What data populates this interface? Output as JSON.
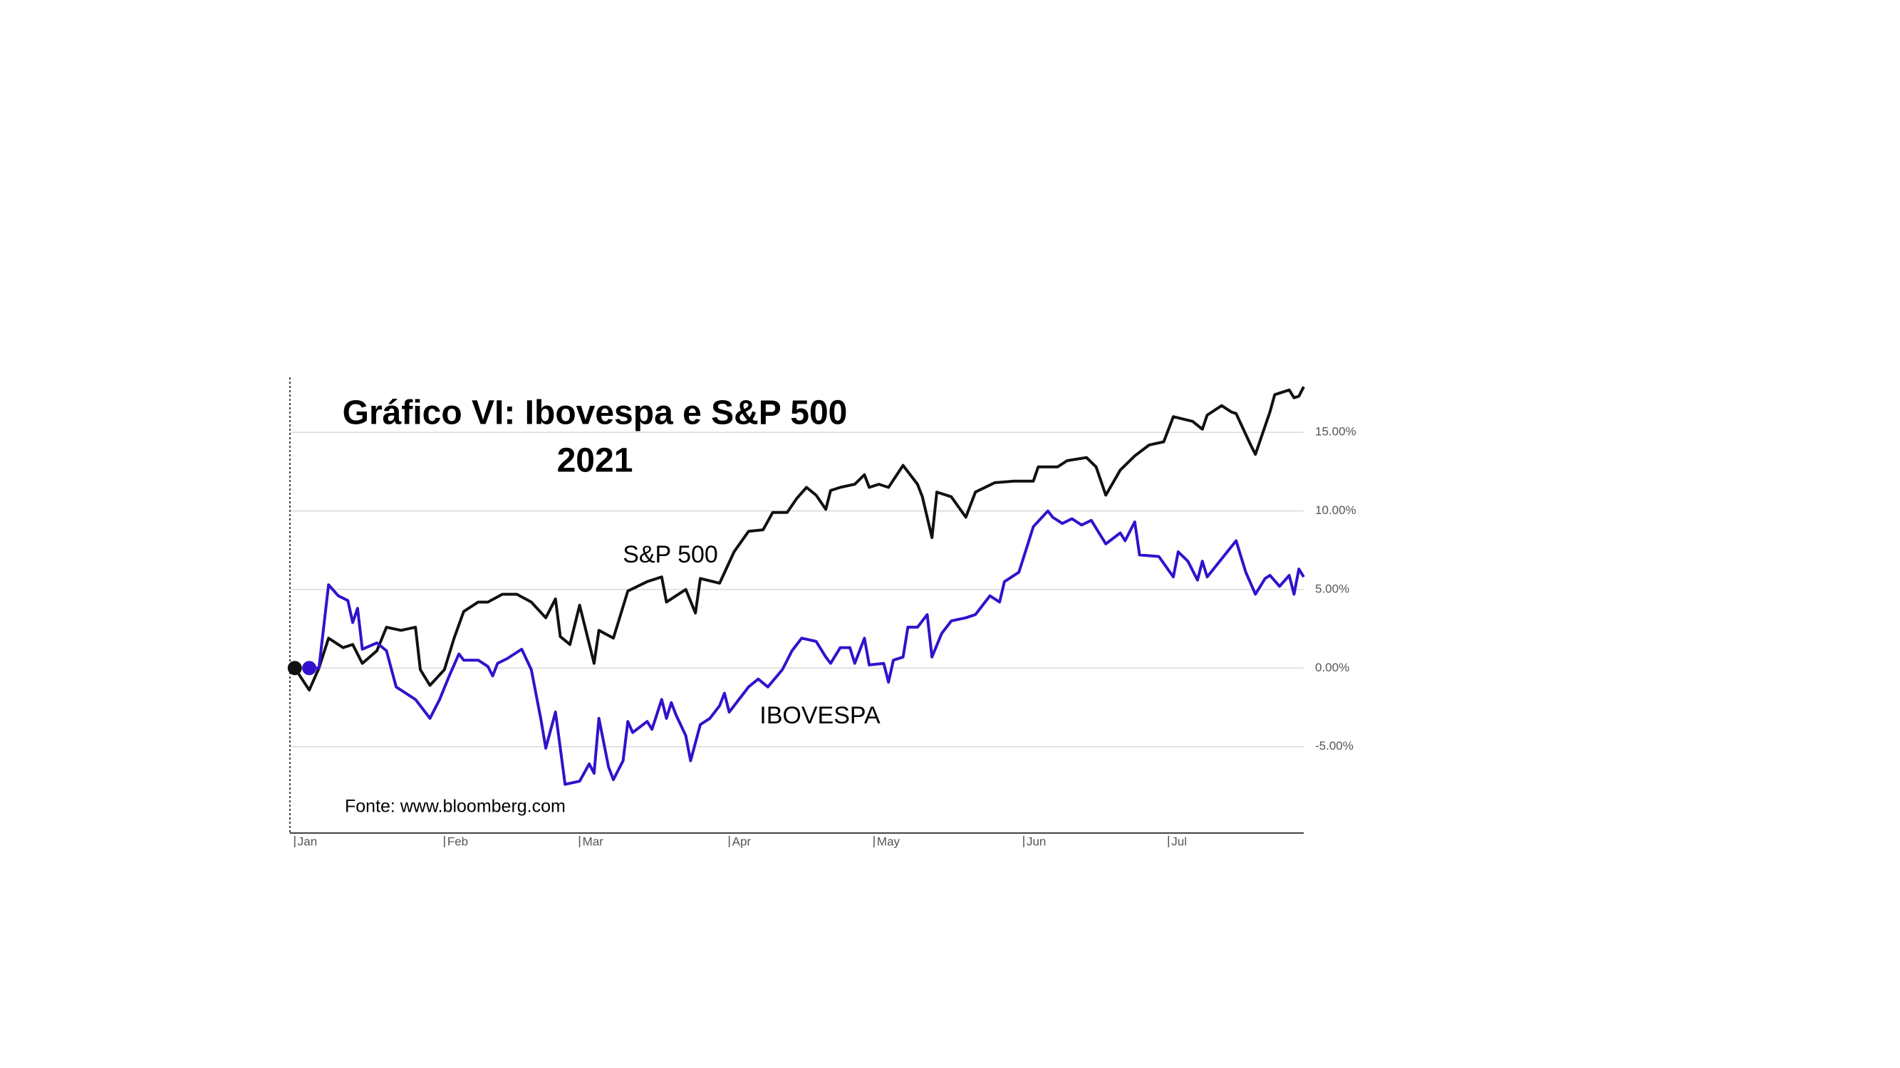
{
  "chart_data": {
    "type": "line",
    "title": "Gráfico VI: Ibovespa e S&P 500",
    "subtitle": "2021",
    "source": "Fonte: www.bloomberg.com",
    "xlim": [
      -1,
      209
    ],
    "xticks": [
      {
        "value": 0,
        "label": "Jan"
      },
      {
        "value": 31,
        "label": "Feb"
      },
      {
        "value": 59,
        "label": "Mar"
      },
      {
        "value": 90,
        "label": "Apr"
      },
      {
        "value": 120,
        "label": "May"
      },
      {
        "value": 151,
        "label": "Jun"
      },
      {
        "value": 181,
        "label": "Jul"
      }
    ],
    "ylim": [
      -10.5,
      18.5
    ],
    "yticks": [
      {
        "value": -5,
        "label": "-5.00%"
      },
      {
        "value": 0,
        "label": "0.00%"
      },
      {
        "value": 5,
        "label": "5.00%"
      },
      {
        "value": 10,
        "label": "10.00%"
      },
      {
        "value": 15,
        "label": "15.00%"
      }
    ],
    "grid": true,
    "series": [
      {
        "name": "S&P 500",
        "color": "#111111",
        "x": [
          0,
          3,
          5,
          7,
          10,
          12,
          14,
          17,
          19,
          22,
          25,
          26,
          28,
          31,
          33,
          35,
          38,
          40,
          43,
          46,
          49,
          52,
          54,
          55,
          57,
          59,
          62,
          63,
          66,
          69,
          73,
          76,
          77,
          81,
          83,
          84,
          88,
          91,
          94,
          97,
          99,
          102,
          104,
          106,
          108,
          110,
          111,
          113,
          116,
          118,
          119,
          121,
          123,
          126,
          129,
          130,
          132,
          133,
          136,
          139,
          141,
          145,
          149,
          153,
          154,
          158,
          160,
          164,
          166,
          168,
          171,
          174,
          177,
          180,
          182,
          186,
          188,
          189,
          192,
          194,
          195,
          198,
          199,
          202,
          203,
          206,
          207,
          208,
          209
        ],
        "values": [
          0,
          -1.4,
          0,
          1.9,
          1.3,
          1.5,
          0.3,
          1.1,
          2.6,
          2.4,
          2.6,
          -0.1,
          -1.1,
          -0.1,
          1.9,
          3.6,
          4.2,
          4.2,
          4.7,
          4.7,
          4.2,
          3.2,
          4.4,
          2.0,
          1.5,
          4.0,
          0.3,
          2.4,
          1.9,
          4.9,
          5.5,
          5.8,
          4.2,
          5.0,
          3.5,
          5.7,
          5.4,
          7.4,
          8.7,
          8.8,
          9.9,
          9.9,
          10.8,
          11.5,
          11.0,
          10.1,
          11.3,
          11.5,
          11.7,
          12.3,
          11.5,
          11.7,
          11.5,
          12.9,
          11.7,
          10.9,
          8.3,
          11.2,
          10.9,
          9.6,
          11.2,
          11.8,
          11.9,
          11.9,
          12.8,
          12.8,
          13.2,
          13.4,
          12.8,
          11.0,
          12.6,
          13.5,
          14.2,
          14.4,
          16.0,
          15.7,
          15.2,
          16.1,
          16.7,
          16.3,
          16.2,
          14.2,
          13.6,
          16.3,
          17.4,
          17.7,
          17.2,
          17.3,
          17.9
        ]
      },
      {
        "name": "IBOVESPA",
        "color": "#3311cc",
        "x": [
          3,
          5,
          7,
          9,
          11,
          12,
          13,
          14,
          17,
          19,
          21,
          25,
          26,
          28,
          30,
          32,
          34,
          35,
          38,
          40,
          41,
          42,
          44,
          47,
          49,
          51,
          52,
          54,
          55,
          56,
          59,
          61,
          62,
          63,
          65,
          66,
          68,
          69,
          70,
          73,
          74,
          76,
          77,
          78,
          79,
          81,
          82,
          84,
          86,
          88,
          89,
          90,
          93,
          94,
          96,
          98,
          101,
          103,
          105,
          108,
          110,
          111,
          113,
          115,
          116,
          118,
          119,
          122,
          123,
          124,
          126,
          127,
          129,
          131,
          132,
          134,
          136,
          139,
          141,
          142,
          144,
          146,
          147,
          150,
          153,
          156,
          157,
          159,
          161,
          163,
          165,
          168,
          171,
          172,
          174,
          175,
          179,
          182,
          183,
          185,
          187,
          188,
          189,
          195,
          197,
          199,
          201,
          202,
          204,
          206,
          207,
          208,
          209
        ],
        "values": [
          0,
          0,
          5.3,
          4.6,
          4.3,
          2.9,
          3.8,
          1.2,
          1.6,
          1.1,
          -1.2,
          -2.0,
          -2.4,
          -3.2,
          -2.0,
          -0.5,
          0.9,
          0.5,
          0.5,
          0.1,
          -0.5,
          0.3,
          0.6,
          1.2,
          -0.1,
          -3.3,
          -5.1,
          -2.8,
          -5.1,
          -7.4,
          -7.2,
          -6.1,
          -6.7,
          -3.2,
          -6.3,
          -7.1,
          -5.9,
          -3.4,
          -4.1,
          -3.4,
          -3.9,
          -2.0,
          -3.2,
          -2.2,
          -3.0,
          -4.3,
          -5.9,
          -3.6,
          -3.2,
          -2.4,
          -1.6,
          -2.8,
          -1.6,
          -1.2,
          -0.7,
          -1.2,
          -0.1,
          1.1,
          1.9,
          1.7,
          0.7,
          0.3,
          1.3,
          1.3,
          0.3,
          1.9,
          0.2,
          0.3,
          -0.9,
          0.5,
          0.7,
          2.6,
          2.6,
          3.4,
          0.7,
          2.2,
          3.0,
          3.2,
          3.4,
          3.8,
          4.6,
          4.2,
          5.5,
          6.1,
          9.0,
          10.0,
          9.6,
          9.2,
          9.5,
          9.1,
          9.4,
          7.9,
          8.6,
          8.1,
          9.3,
          7.2,
          7.1,
          5.8,
          7.4,
          6.8,
          5.6,
          6.8,
          5.8,
          8.1,
          6.1,
          4.7,
          5.7,
          5.9,
          5.2,
          5.9,
          4.7,
          6.3,
          5.8
        ]
      }
    ]
  }
}
